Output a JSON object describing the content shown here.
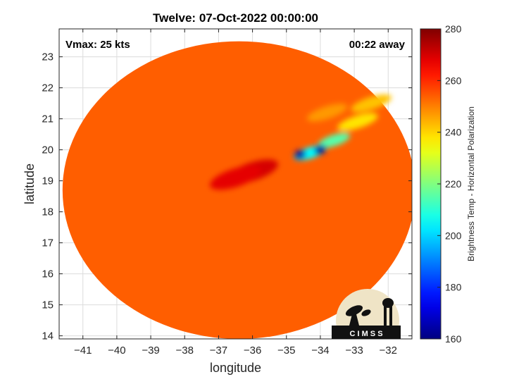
{
  "chart_data": {
    "type": "heatmap",
    "title": "Twelve: 07-Oct-2022 00:00:00",
    "xlabel": "longitude",
    "ylabel": "latitude",
    "xlim": [
      -41.7,
      -31.3
    ],
    "ylim": [
      13.9,
      23.9
    ],
    "x_ticks": [
      -41,
      -40,
      -39,
      -38,
      -37,
      -36,
      -35,
      -34,
      -33,
      -32
    ],
    "y_ticks": [
      14,
      15,
      16,
      17,
      18,
      19,
      20,
      21,
      22,
      23
    ],
    "grid": true,
    "annotations": {
      "vmax": "Vmax: 25 kts",
      "time_away": "00:22 away"
    },
    "colorbar": {
      "label": "Brightness Temp - Horizontal Polarization",
      "range": [
        160,
        280
      ],
      "ticks": [
        160,
        180,
        200,
        220,
        240,
        260,
        280
      ],
      "colormap": "jet"
    },
    "swath": {
      "center": [
        -36.4,
        18.7
      ],
      "radius_lon": 5.2,
      "radius_lat": 4.8
    },
    "background_temp": 254,
    "features": [
      {
        "kind": "cold-core",
        "lon": -34.6,
        "lat": 19.85,
        "temp": 165
      },
      {
        "kind": "cold-core",
        "lon": -34.0,
        "lat": 20.0,
        "temp": 163
      },
      {
        "kind": "cold-band",
        "lon": -33.6,
        "lat": 20.3,
        "temp": 215
      },
      {
        "kind": "cold-band",
        "lon": -34.3,
        "lat": 19.9,
        "temp": 205
      },
      {
        "kind": "cloud-arm",
        "lon": -32.9,
        "lat": 20.9,
        "temp": 238
      },
      {
        "kind": "cloud-arm",
        "lon": -32.5,
        "lat": 21.5,
        "temp": 242
      },
      {
        "kind": "cloud-arm",
        "lon": -33.8,
        "lat": 21.2,
        "temp": 247
      },
      {
        "kind": "warm-core",
        "lon": -36.0,
        "lat": 19.3,
        "temp": 270
      },
      {
        "kind": "warm-core",
        "lon": -36.5,
        "lat": 19.1,
        "temp": 268
      }
    ],
    "logo": "CIMSS"
  }
}
